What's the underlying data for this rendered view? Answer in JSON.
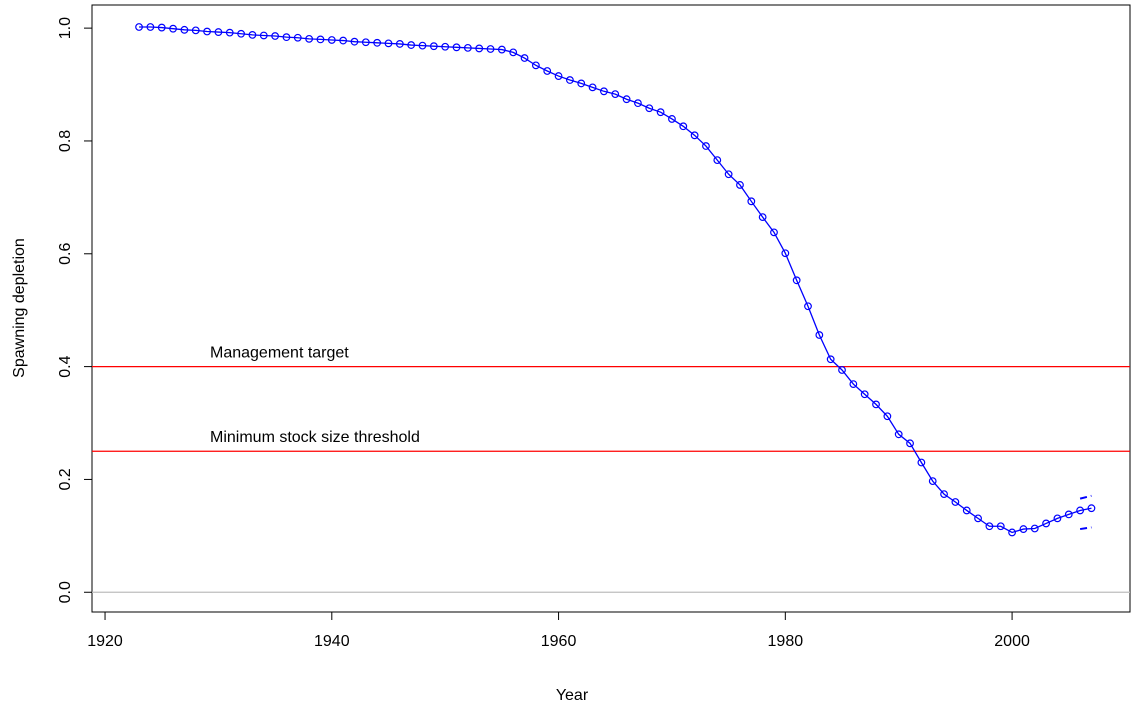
{
  "chart_data": {
    "type": "line",
    "xlabel": "Year",
    "ylabel": "Spawning depletion",
    "x": [
      1923,
      1924,
      1925,
      1926,
      1927,
      1928,
      1929,
      1930,
      1931,
      1932,
      1933,
      1934,
      1935,
      1936,
      1937,
      1938,
      1939,
      1940,
      1941,
      1942,
      1943,
      1944,
      1945,
      1946,
      1947,
      1948,
      1949,
      1950,
      1951,
      1952,
      1953,
      1954,
      1955,
      1956,
      1957,
      1958,
      1959,
      1960,
      1961,
      1962,
      1963,
      1964,
      1965,
      1966,
      1967,
      1968,
      1969,
      1970,
      1971,
      1972,
      1973,
      1974,
      1975,
      1976,
      1977,
      1978,
      1979,
      1980,
      1981,
      1982,
      1983,
      1984,
      1985,
      1986,
      1987,
      1988,
      1989,
      1990,
      1991,
      1992,
      1993,
      1994,
      1995,
      1996,
      1997,
      1998,
      1999,
      2000,
      2001,
      2002,
      2003,
      2004,
      2005,
      2006,
      2007
    ],
    "values": [
      1.002,
      1.002,
      1.001,
      0.999,
      0.997,
      0.996,
      0.994,
      0.993,
      0.992,
      0.99,
      0.988,
      0.987,
      0.986,
      0.984,
      0.983,
      0.981,
      0.98,
      0.979,
      0.978,
      0.976,
      0.975,
      0.974,
      0.973,
      0.972,
      0.97,
      0.969,
      0.968,
      0.967,
      0.966,
      0.965,
      0.964,
      0.963,
      0.962,
      0.957,
      0.947,
      0.934,
      0.924,
      0.915,
      0.908,
      0.902,
      0.895,
      0.888,
      0.883,
      0.874,
      0.867,
      0.858,
      0.851,
      0.839,
      0.826,
      0.81,
      0.791,
      0.766,
      0.741,
      0.722,
      0.693,
      0.665,
      0.638,
      0.601,
      0.553,
      0.507,
      0.456,
      0.413,
      0.394,
      0.369,
      0.351,
      0.333,
      0.312,
      0.28,
      0.264,
      0.23,
      0.197,
      0.174,
      0.16,
      0.145,
      0.131,
      0.117,
      0.117,
      0.106,
      0.112,
      0.113,
      0.122,
      0.131,
      0.138,
      0.145,
      0.149
    ],
    "color": "#0000ff",
    "interval": {
      "x": [
        2006,
        2007
      ],
      "upper": [
        0.166,
        0.171
      ],
      "lower": [
        0.112,
        0.115
      ]
    },
    "reference_lines": [
      {
        "value": 0.4,
        "label": "Management target",
        "color": "#ff0000"
      },
      {
        "value": 0.25,
        "label": "Minimum stock size threshold",
        "color": "#ff0000"
      },
      {
        "value": 0,
        "color": "#bebebe"
      }
    ],
    "xlim": [
      1918.85,
      2010.4
    ],
    "ylim": [
      -0.035,
      1.041
    ],
    "xticks": [
      1920,
      1940,
      1960,
      1980,
      2000
    ],
    "yticks": [
      {
        "value": 0,
        "label": "0.0"
      },
      0.2,
      0.4,
      0.6,
      0.8,
      {
        "value": 1,
        "label": "1.0"
      }
    ]
  }
}
